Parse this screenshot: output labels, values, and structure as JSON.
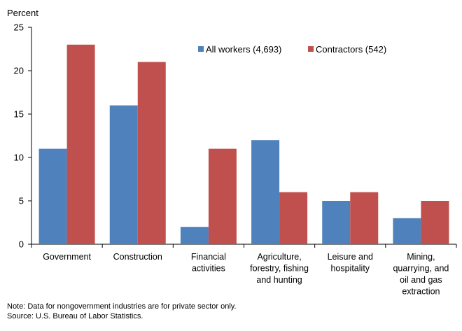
{
  "chart_data": {
    "type": "bar",
    "ylabel": "Percent",
    "ylim": [
      0,
      25
    ],
    "yticks": [
      0,
      5,
      10,
      15,
      20,
      25
    ],
    "categories": [
      [
        "Government"
      ],
      [
        "Construction"
      ],
      [
        "Financial",
        "activities"
      ],
      [
        "Agriculture,",
        "forestry, fishing",
        "and hunting"
      ],
      [
        "Leisure and",
        "hospitality"
      ],
      [
        "Mining,",
        "quarrying, and",
        "oil and gas",
        "extraction"
      ]
    ],
    "series": [
      {
        "name": "All workers (4,693)",
        "color": "#4f81bd",
        "values": [
          11,
          16,
          2,
          12,
          5,
          3
        ]
      },
      {
        "name": "Contractors (542)",
        "color": "#c0504d",
        "values": [
          23,
          21,
          11,
          6,
          6,
          5
        ]
      }
    ],
    "legend_position": "top-right",
    "grid": false
  },
  "notes": {
    "note": "Note:  Data for nongovernment  industries are for private  sector only.",
    "source": "Source:  U.S. Bureau of Labor Statistics."
  }
}
